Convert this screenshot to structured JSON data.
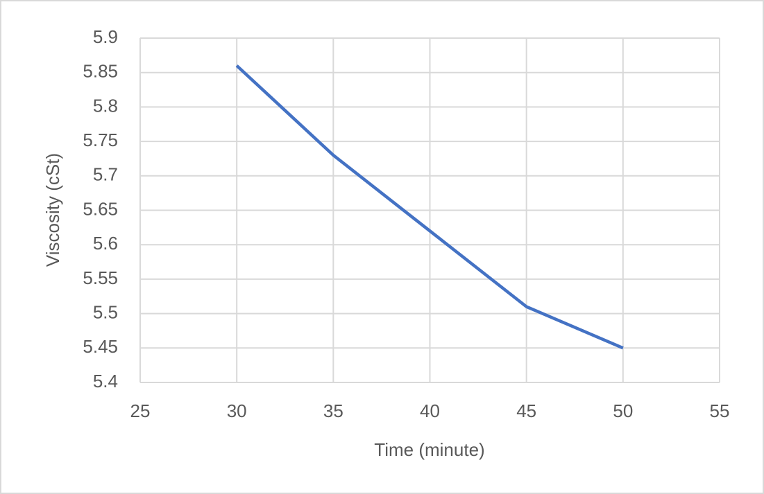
{
  "chart_data": {
    "type": "line",
    "x_label": "Time (minute)",
    "y_label": "Viscosity (cSt)",
    "x": [
      30,
      35,
      40,
      45,
      50
    ],
    "series": [
      {
        "color": "#4472c4",
        "values": [
          5.86,
          5.73,
          5.62,
          5.51,
          5.45
        ]
      }
    ],
    "xlim": [
      25,
      55
    ],
    "xticks": [
      25,
      30,
      35,
      40,
      45,
      50,
      55
    ],
    "ylim": [
      5.4,
      5.9
    ],
    "yticks": [
      5.4,
      5.45,
      5.5,
      5.55,
      5.6,
      5.65,
      5.7,
      5.75,
      5.8,
      5.85,
      5.9
    ],
    "grid": true
  }
}
